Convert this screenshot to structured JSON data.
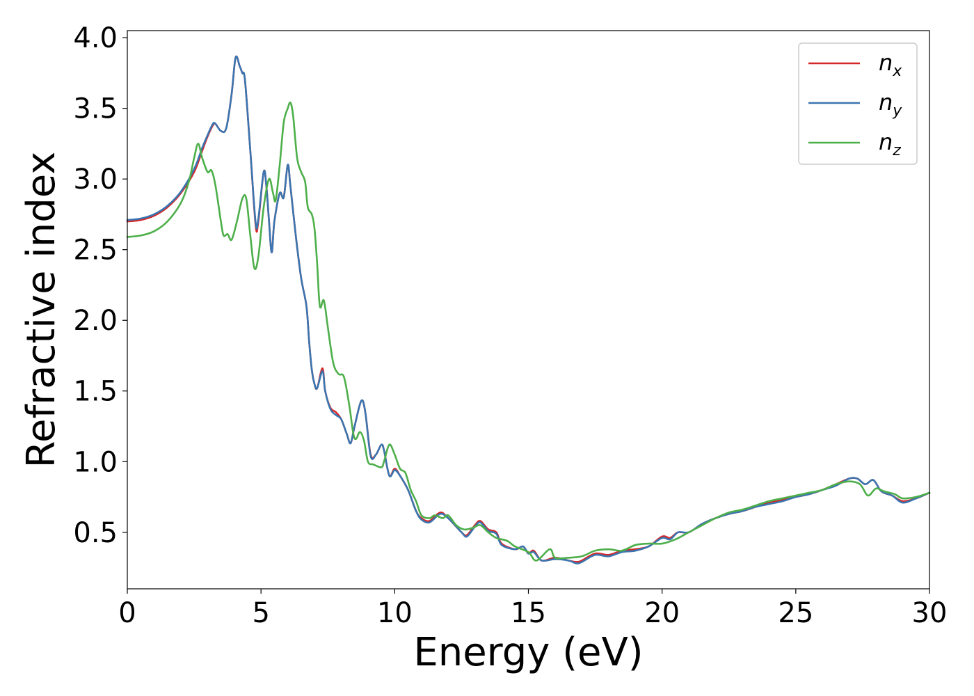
{
  "chart_data": {
    "type": "line",
    "title": "",
    "xlabel": "Energy (eV)",
    "ylabel": "Refractive index",
    "xlim": [
      0,
      30
    ],
    "ylim": [
      0.1,
      4.05
    ],
    "xticks": [
      0,
      5,
      10,
      15,
      20,
      25,
      30
    ],
    "xtick_labels": [
      "0",
      "5",
      "10",
      "15",
      "20",
      "25",
      "30"
    ],
    "yticks": [
      0.5,
      1.0,
      1.5,
      2.0,
      2.5,
      3.0,
      3.5,
      4.0
    ],
    "ytick_labels": [
      "0.5",
      "1.0",
      "1.5",
      "2.0",
      "2.5",
      "3.0",
      "3.5",
      "4.0"
    ],
    "grid": false,
    "legend_position": "top-right",
    "series": [
      {
        "name": "n",
        "subscript": "x",
        "color": "#d62728",
        "points": [
          [
            0,
            2.7
          ],
          [
            0.5,
            2.71
          ],
          [
            1.0,
            2.74
          ],
          [
            1.5,
            2.8
          ],
          [
            2.0,
            2.9
          ],
          [
            2.5,
            3.05
          ],
          [
            2.8,
            3.2
          ],
          [
            3.0,
            3.3
          ],
          [
            3.2,
            3.38
          ],
          [
            3.3,
            3.39
          ],
          [
            3.5,
            3.34
          ],
          [
            3.7,
            3.36
          ],
          [
            3.9,
            3.6
          ],
          [
            4.05,
            3.86
          ],
          [
            4.2,
            3.8
          ],
          [
            4.3,
            3.75
          ],
          [
            4.4,
            3.7
          ],
          [
            4.6,
            3.2
          ],
          [
            4.8,
            2.67
          ],
          [
            4.9,
            2.7
          ],
          [
            5.1,
            3.05
          ],
          [
            5.2,
            2.95
          ],
          [
            5.3,
            2.7
          ],
          [
            5.4,
            2.48
          ],
          [
            5.5,
            2.7
          ],
          [
            5.7,
            2.9
          ],
          [
            5.85,
            2.87
          ],
          [
            6.0,
            3.1
          ],
          [
            6.1,
            2.95
          ],
          [
            6.3,
            2.6
          ],
          [
            6.5,
            2.3
          ],
          [
            6.7,
            2.1
          ],
          [
            6.8,
            1.85
          ],
          [
            6.9,
            1.65
          ],
          [
            7.0,
            1.55
          ],
          [
            7.1,
            1.52
          ],
          [
            7.3,
            1.66
          ],
          [
            7.4,
            1.5
          ],
          [
            7.6,
            1.38
          ],
          [
            7.8,
            1.35
          ],
          [
            8.0,
            1.3
          ],
          [
            8.2,
            1.2
          ],
          [
            8.35,
            1.13
          ],
          [
            8.5,
            1.25
          ],
          [
            8.75,
            1.43
          ],
          [
            8.9,
            1.35
          ],
          [
            9.1,
            1.05
          ],
          [
            9.3,
            1.05
          ],
          [
            9.5,
            1.12
          ],
          [
            9.6,
            1.08
          ],
          [
            9.8,
            0.9
          ],
          [
            10.0,
            0.95
          ],
          [
            10.2,
            0.9
          ],
          [
            10.5,
            0.8
          ],
          [
            10.8,
            0.65
          ],
          [
            11.0,
            0.6
          ],
          [
            11.3,
            0.58
          ],
          [
            11.7,
            0.64
          ],
          [
            12.0,
            0.6
          ],
          [
            12.5,
            0.5
          ],
          [
            12.7,
            0.48
          ],
          [
            13.0,
            0.55
          ],
          [
            13.2,
            0.58
          ],
          [
            13.5,
            0.52
          ],
          [
            13.8,
            0.5
          ],
          [
            14.0,
            0.42
          ],
          [
            14.5,
            0.38
          ],
          [
            14.8,
            0.4
          ],
          [
            15.0,
            0.35
          ],
          [
            15.2,
            0.37
          ],
          [
            15.5,
            0.3
          ],
          [
            16.0,
            0.32
          ],
          [
            16.5,
            0.3
          ],
          [
            16.8,
            0.29
          ],
          [
            17.0,
            0.3
          ],
          [
            17.5,
            0.35
          ],
          [
            18.0,
            0.34
          ],
          [
            18.5,
            0.37
          ],
          [
            19.0,
            0.38
          ],
          [
            19.5,
            0.4
          ],
          [
            20.0,
            0.47
          ],
          [
            20.3,
            0.46
          ],
          [
            20.6,
            0.5
          ],
          [
            21.0,
            0.5
          ],
          [
            21.5,
            0.56
          ],
          [
            22.0,
            0.6
          ],
          [
            22.5,
            0.63
          ],
          [
            23.0,
            0.65
          ],
          [
            23.5,
            0.68
          ],
          [
            24.0,
            0.71
          ],
          [
            24.5,
            0.73
          ],
          [
            25.0,
            0.75
          ],
          [
            25.5,
            0.77
          ],
          [
            26.0,
            0.8
          ],
          [
            26.5,
            0.84
          ],
          [
            27.0,
            0.88
          ],
          [
            27.3,
            0.88
          ],
          [
            27.6,
            0.84
          ],
          [
            27.9,
            0.87
          ],
          [
            28.2,
            0.79
          ],
          [
            28.6,
            0.76
          ],
          [
            29.0,
            0.72
          ],
          [
            29.5,
            0.74
          ],
          [
            30.0,
            0.78
          ]
        ]
      },
      {
        "name": "n",
        "subscript": "y",
        "color": "#3a75b0",
        "points": [
          [
            0,
            2.71
          ],
          [
            0.5,
            2.72
          ],
          [
            1.0,
            2.75
          ],
          [
            1.5,
            2.81
          ],
          [
            2.0,
            2.91
          ],
          [
            2.5,
            3.07
          ],
          [
            2.8,
            3.22
          ],
          [
            3.0,
            3.31
          ],
          [
            3.2,
            3.39
          ],
          [
            3.3,
            3.39
          ],
          [
            3.5,
            3.34
          ],
          [
            3.7,
            3.36
          ],
          [
            3.9,
            3.6
          ],
          [
            4.05,
            3.86
          ],
          [
            4.2,
            3.8
          ],
          [
            4.3,
            3.75
          ],
          [
            4.4,
            3.7
          ],
          [
            4.6,
            3.2
          ],
          [
            4.8,
            2.69
          ],
          [
            4.9,
            2.72
          ],
          [
            5.1,
            3.05
          ],
          [
            5.2,
            2.95
          ],
          [
            5.3,
            2.7
          ],
          [
            5.4,
            2.48
          ],
          [
            5.5,
            2.7
          ],
          [
            5.7,
            2.9
          ],
          [
            5.85,
            2.87
          ],
          [
            6.0,
            3.1
          ],
          [
            6.1,
            2.95
          ],
          [
            6.3,
            2.6
          ],
          [
            6.5,
            2.3
          ],
          [
            6.7,
            2.1
          ],
          [
            6.8,
            1.85
          ],
          [
            6.9,
            1.65
          ],
          [
            7.0,
            1.55
          ],
          [
            7.1,
            1.52
          ],
          [
            7.3,
            1.64
          ],
          [
            7.4,
            1.5
          ],
          [
            7.6,
            1.37
          ],
          [
            7.8,
            1.33
          ],
          [
            8.0,
            1.3
          ],
          [
            8.2,
            1.2
          ],
          [
            8.35,
            1.13
          ],
          [
            8.5,
            1.25
          ],
          [
            8.75,
            1.43
          ],
          [
            8.9,
            1.35
          ],
          [
            9.1,
            1.04
          ],
          [
            9.3,
            1.05
          ],
          [
            9.5,
            1.12
          ],
          [
            9.6,
            1.08
          ],
          [
            9.8,
            0.9
          ],
          [
            10.0,
            0.94
          ],
          [
            10.2,
            0.9
          ],
          [
            10.5,
            0.8
          ],
          [
            10.8,
            0.65
          ],
          [
            11.0,
            0.59
          ],
          [
            11.3,
            0.57
          ],
          [
            11.7,
            0.63
          ],
          [
            12.0,
            0.6
          ],
          [
            12.5,
            0.5
          ],
          [
            12.7,
            0.47
          ],
          [
            13.0,
            0.54
          ],
          [
            13.2,
            0.57
          ],
          [
            13.5,
            0.51
          ],
          [
            13.8,
            0.49
          ],
          [
            14.0,
            0.41
          ],
          [
            14.5,
            0.38
          ],
          [
            14.8,
            0.4
          ],
          [
            15.0,
            0.35
          ],
          [
            15.2,
            0.36
          ],
          [
            15.5,
            0.3
          ],
          [
            16.0,
            0.31
          ],
          [
            16.5,
            0.3
          ],
          [
            16.8,
            0.28
          ],
          [
            17.0,
            0.29
          ],
          [
            17.5,
            0.34
          ],
          [
            18.0,
            0.33
          ],
          [
            18.5,
            0.36
          ],
          [
            19.0,
            0.37
          ],
          [
            19.5,
            0.4
          ],
          [
            20.0,
            0.46
          ],
          [
            20.3,
            0.45
          ],
          [
            20.6,
            0.5
          ],
          [
            21.0,
            0.5
          ],
          [
            21.5,
            0.56
          ],
          [
            22.0,
            0.6
          ],
          [
            22.5,
            0.63
          ],
          [
            23.0,
            0.65
          ],
          [
            23.5,
            0.68
          ],
          [
            24.0,
            0.7
          ],
          [
            24.5,
            0.72
          ],
          [
            25.0,
            0.75
          ],
          [
            25.5,
            0.77
          ],
          [
            26.0,
            0.8
          ],
          [
            26.5,
            0.83
          ],
          [
            27.0,
            0.88
          ],
          [
            27.3,
            0.88
          ],
          [
            27.6,
            0.84
          ],
          [
            27.9,
            0.87
          ],
          [
            28.2,
            0.79
          ],
          [
            28.6,
            0.76
          ],
          [
            29.0,
            0.71
          ],
          [
            29.5,
            0.74
          ],
          [
            30.0,
            0.78
          ]
        ]
      },
      {
        "name": "n",
        "subscript": "z",
        "color": "#4daf4a",
        "points": [
          [
            0,
            2.59
          ],
          [
            0.5,
            2.6
          ],
          [
            1.0,
            2.63
          ],
          [
            1.5,
            2.7
          ],
          [
            2.0,
            2.83
          ],
          [
            2.3,
            2.98
          ],
          [
            2.5,
            3.15
          ],
          [
            2.65,
            3.25
          ],
          [
            2.8,
            3.15
          ],
          [
            3.0,
            3.05
          ],
          [
            3.15,
            3.06
          ],
          [
            3.3,
            2.95
          ],
          [
            3.5,
            2.7
          ],
          [
            3.6,
            2.6
          ],
          [
            3.75,
            2.61
          ],
          [
            3.9,
            2.57
          ],
          [
            4.1,
            2.7
          ],
          [
            4.3,
            2.86
          ],
          [
            4.45,
            2.86
          ],
          [
            4.6,
            2.6
          ],
          [
            4.75,
            2.37
          ],
          [
            4.9,
            2.45
          ],
          [
            5.1,
            2.8
          ],
          [
            5.3,
            3.0
          ],
          [
            5.45,
            2.9
          ],
          [
            5.55,
            2.85
          ],
          [
            5.7,
            3.1
          ],
          [
            5.85,
            3.4
          ],
          [
            6.0,
            3.5
          ],
          [
            6.1,
            3.54
          ],
          [
            6.2,
            3.45
          ],
          [
            6.35,
            3.15
          ],
          [
            6.5,
            3.05
          ],
          [
            6.65,
            2.98
          ],
          [
            6.75,
            2.8
          ],
          [
            6.9,
            2.75
          ],
          [
            7.0,
            2.65
          ],
          [
            7.1,
            2.4
          ],
          [
            7.2,
            2.1
          ],
          [
            7.35,
            2.14
          ],
          [
            7.5,
            1.95
          ],
          [
            7.7,
            1.7
          ],
          [
            7.9,
            1.62
          ],
          [
            8.1,
            1.6
          ],
          [
            8.3,
            1.4
          ],
          [
            8.45,
            1.2
          ],
          [
            8.55,
            1.16
          ],
          [
            8.7,
            1.21
          ],
          [
            8.85,
            1.15
          ],
          [
            9.0,
            1.0
          ],
          [
            9.2,
            0.98
          ],
          [
            9.5,
            0.96
          ],
          [
            9.6,
            1.0
          ],
          [
            9.8,
            1.12
          ],
          [
            10.0,
            1.05
          ],
          [
            10.2,
            0.95
          ],
          [
            10.4,
            0.92
          ],
          [
            10.6,
            0.8
          ],
          [
            10.8,
            0.72
          ],
          [
            11.0,
            0.62
          ],
          [
            11.3,
            0.6
          ],
          [
            11.5,
            0.62
          ],
          [
            11.8,
            0.6
          ],
          [
            12.0,
            0.62
          ],
          [
            12.3,
            0.55
          ],
          [
            12.6,
            0.52
          ],
          [
            12.9,
            0.53
          ],
          [
            13.2,
            0.55
          ],
          [
            13.5,
            0.5
          ],
          [
            13.8,
            0.46
          ],
          [
            14.2,
            0.44
          ],
          [
            14.5,
            0.4
          ],
          [
            15.0,
            0.36
          ],
          [
            15.3,
            0.3
          ],
          [
            15.8,
            0.38
          ],
          [
            16.0,
            0.32
          ],
          [
            16.5,
            0.32
          ],
          [
            17.0,
            0.33
          ],
          [
            17.5,
            0.37
          ],
          [
            18.0,
            0.38
          ],
          [
            18.5,
            0.37
          ],
          [
            19.0,
            0.41
          ],
          [
            19.5,
            0.42
          ],
          [
            20.0,
            0.42
          ],
          [
            20.5,
            0.45
          ],
          [
            21.0,
            0.5
          ],
          [
            21.5,
            0.55
          ],
          [
            22.0,
            0.6
          ],
          [
            22.5,
            0.64
          ],
          [
            23.0,
            0.66
          ],
          [
            23.5,
            0.69
          ],
          [
            24.0,
            0.72
          ],
          [
            24.5,
            0.74
          ],
          [
            25.0,
            0.76
          ],
          [
            25.5,
            0.78
          ],
          [
            26.0,
            0.8
          ],
          [
            26.5,
            0.84
          ],
          [
            27.0,
            0.86
          ],
          [
            27.4,
            0.84
          ],
          [
            27.7,
            0.76
          ],
          [
            28.0,
            0.81
          ],
          [
            28.3,
            0.79
          ],
          [
            28.7,
            0.77
          ],
          [
            29.0,
            0.74
          ],
          [
            29.5,
            0.75
          ],
          [
            30.0,
            0.78
          ]
        ]
      }
    ]
  }
}
